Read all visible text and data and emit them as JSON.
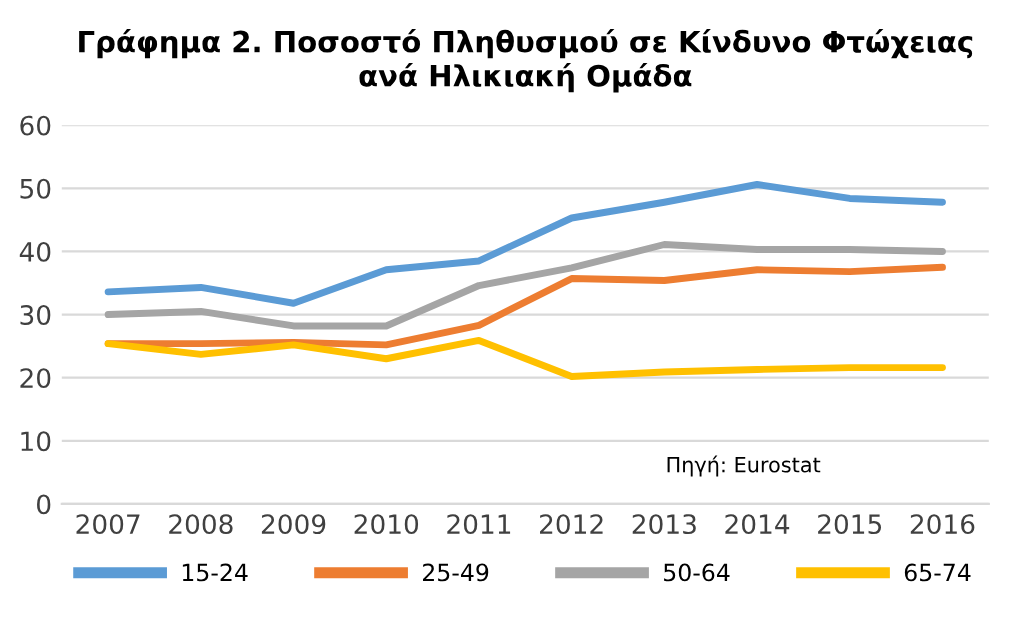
{
  "chart_data": {
    "type": "line",
    "title": "Γράφημα 2. Ποσοστό Πληθυσμού σε Κίνδυνο Φτώχειας\nανά Ηλικιακή Ομάδα",
    "categories": [
      "2007",
      "2008",
      "2009",
      "2010",
      "2011",
      "2012",
      "2013",
      "2014",
      "2015",
      "2016"
    ],
    "series": [
      {
        "name": "15-24",
        "color": "#5b9bd5",
        "values": [
          33.6,
          34.3,
          31.8,
          37.1,
          38.5,
          45.3,
          47.8,
          50.6,
          48.4,
          47.8
        ]
      },
      {
        "name": "25-49",
        "color": "#ed7d31",
        "values": [
          25.4,
          25.4,
          25.6,
          25.2,
          28.3,
          35.7,
          35.4,
          37.1,
          36.8,
          37.5
        ]
      },
      {
        "name": "50-64",
        "color": "#a5a5a5",
        "values": [
          30.0,
          30.5,
          28.2,
          28.2,
          34.6,
          37.4,
          41.1,
          40.3,
          40.3,
          40.0
        ]
      },
      {
        "name": "65-74",
        "color": "#ffc000",
        "values": [
          25.4,
          23.7,
          25.2,
          23.0,
          25.9,
          20.2,
          20.9,
          21.3,
          21.6,
          21.6
        ]
      }
    ],
    "ylim": [
      0,
      60
    ],
    "yticks": [
      0,
      10,
      20,
      30,
      40,
      50,
      60
    ],
    "grid": "y",
    "legend": "bottom",
    "marker": "none",
    "line_style": "solid",
    "annotations": [
      "Πηγή: Eurostat"
    ]
  }
}
